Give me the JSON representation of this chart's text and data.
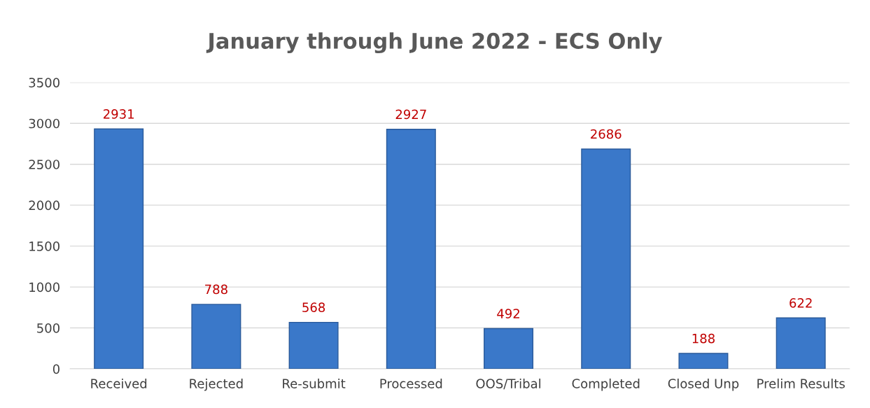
{
  "chart_data": {
    "type": "bar",
    "title": "January through June 2022 - ECS Only",
    "categories": [
      "Received",
      "Rejected",
      "Re-submit",
      "Processed",
      "OOS/Tribal",
      "Completed",
      "Closed Unp",
      "Prelim Results"
    ],
    "values": [
      2931,
      788,
      568,
      2927,
      492,
      2686,
      188,
      622
    ],
    "color": "#3a78c9",
    "ylim": [
      0,
      3500
    ],
    "yticks": [
      0,
      500,
      1000,
      1500,
      2000,
      2500,
      3000,
      3500
    ],
    "grid": "y",
    "data_labels": true,
    "legend": false
  }
}
